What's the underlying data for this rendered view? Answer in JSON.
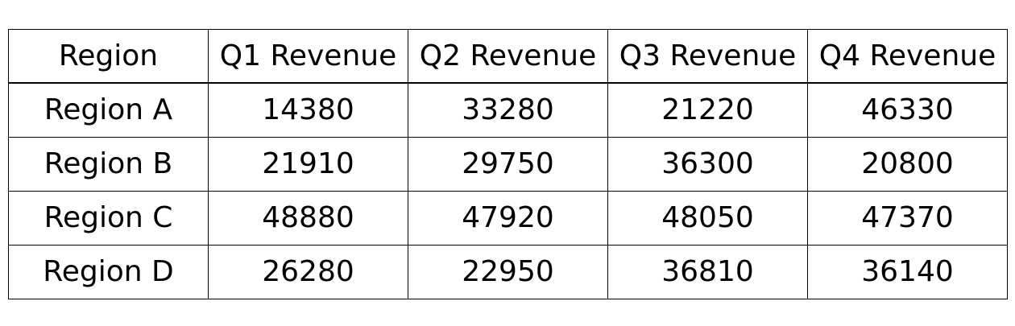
{
  "chart_data": {
    "type": "table",
    "columns": [
      "Region",
      "Q1 Revenue",
      "Q2 Revenue",
      "Q3 Revenue",
      "Q4 Revenue"
    ],
    "rows": [
      [
        "Region A",
        "14380",
        "33280",
        "21220",
        "46330"
      ],
      [
        "Region B",
        "21910",
        "29750",
        "36300",
        "20800"
      ],
      [
        "Region C",
        "48880",
        "47920",
        "48050",
        "47370"
      ],
      [
        "Region D",
        "26280",
        "22950",
        "36810",
        "36140"
      ]
    ]
  }
}
